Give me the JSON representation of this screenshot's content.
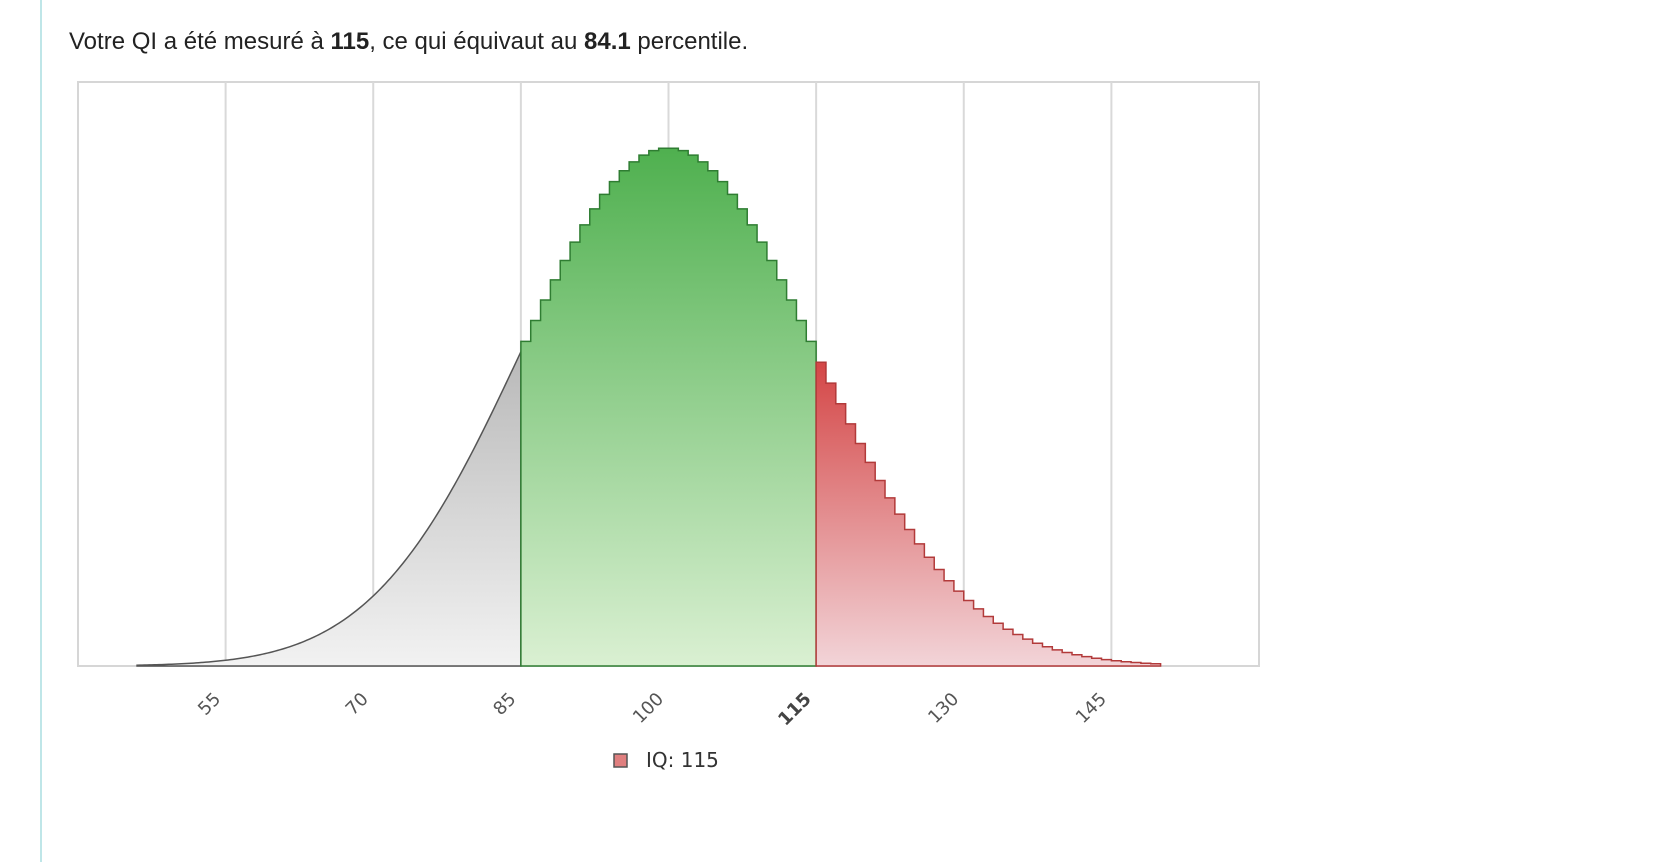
{
  "result": {
    "prefix": "Votre QI a été mesuré à ",
    "iq": "115",
    "middle": ", ce qui équivaut au ",
    "percentile": "84.1",
    "suffix": " percentile."
  },
  "chart_data": {
    "type": "area",
    "distribution": {
      "mean": 100,
      "sd": 15,
      "step": 1
    },
    "x_range": [
      40,
      160
    ],
    "x_ticks": [
      55,
      70,
      85,
      100,
      115,
      130,
      145
    ],
    "highlight_tick": 115,
    "regions": [
      {
        "from": 40,
        "to": 85,
        "color_top": "#b9b9b9",
        "color_bottom": "#f2f2f2",
        "stroke": "#555555",
        "style": "smooth"
      },
      {
        "from": 85,
        "to": 115,
        "color_top": "#4fb04f",
        "color_bottom": "#daf0d2",
        "stroke": "#2f7d32",
        "style": "step"
      },
      {
        "from": 115,
        "to": 160,
        "color_top": "#d44646",
        "color_bottom": "#f2d4d8",
        "stroke": "#b23a3a",
        "style": "step"
      }
    ],
    "grid": true,
    "legend": {
      "position": "bottom",
      "label": "IQ: 115",
      "color": "#e07f7f"
    }
  }
}
